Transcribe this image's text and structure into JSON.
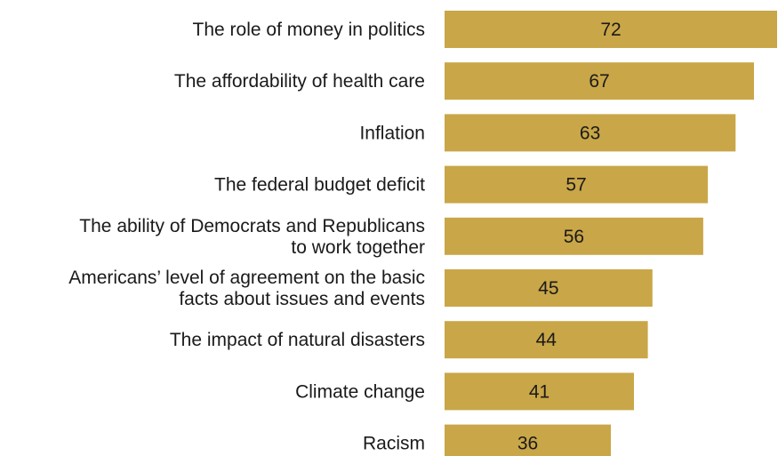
{
  "chart_data": {
    "type": "bar",
    "orientation": "horizontal",
    "categories": [
      [
        "The role of money in politics"
      ],
      [
        "The affordability of health care"
      ],
      [
        "Inflation"
      ],
      [
        "The federal budget deficit"
      ],
      [
        "The ability of Democrats and Republicans",
        "to work together"
      ],
      [
        "Americans’ level of agreement on the basic",
        "facts about issues and events"
      ],
      [
        "The impact of natural disasters"
      ],
      [
        "Climate change"
      ],
      [
        "Racism"
      ]
    ],
    "values": [
      72,
      67,
      63,
      57,
      56,
      45,
      44,
      41,
      36
    ],
    "bar_color": "#c9a647",
    "xlim": [
      0,
      72
    ],
    "grid": false,
    "legend": "none"
  }
}
